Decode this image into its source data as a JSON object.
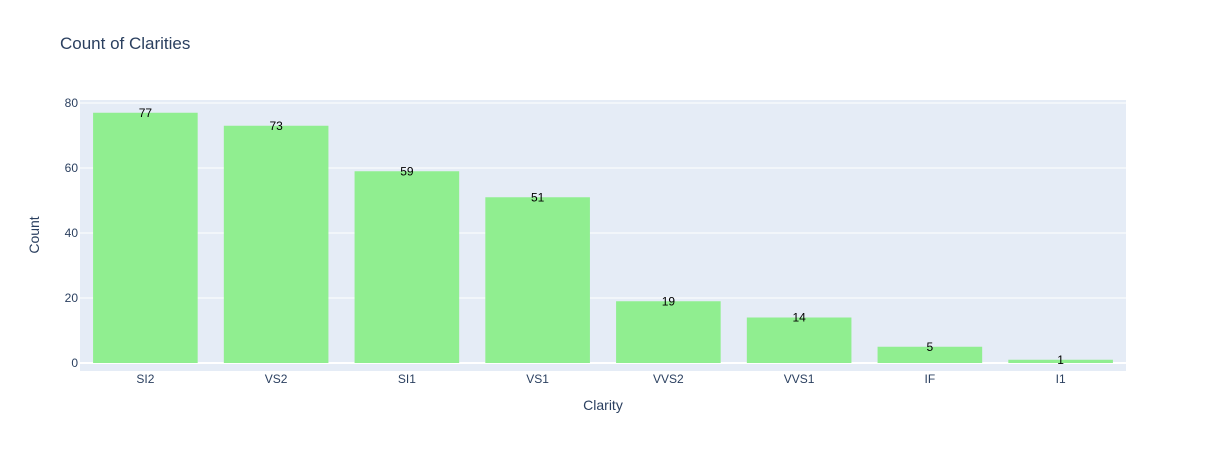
{
  "chart_data": {
    "type": "bar",
    "title": "Count of Clarities",
    "xlabel": "Clarity",
    "ylabel": "Count",
    "categories": [
      "SI2",
      "VS2",
      "SI1",
      "VS1",
      "VVS2",
      "VVS1",
      "IF",
      "I1"
    ],
    "values": [
      77,
      73,
      59,
      51,
      19,
      14,
      5,
      1
    ],
    "ylim": [
      0,
      80
    ],
    "yticks": [
      0,
      20,
      40,
      60,
      80
    ],
    "grid": true,
    "legend": "none",
    "colors": {
      "bar": "#90ee90",
      "plot_bg": "#e5ecf6",
      "grid": "#ffffff",
      "text": "#2a3f5f",
      "label": "#000000"
    }
  }
}
